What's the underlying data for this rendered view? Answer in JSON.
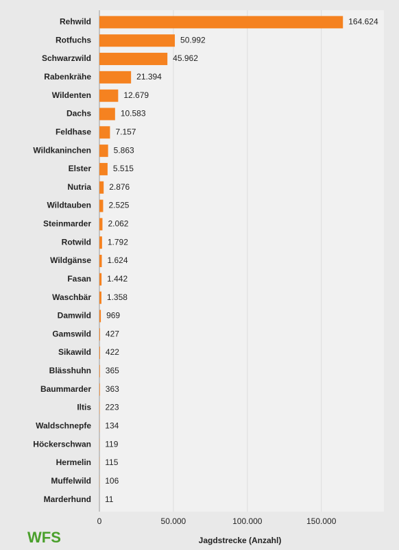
{
  "chart_data": {
    "type": "hbar",
    "categories": [
      "Rehwild",
      "Rotfuchs",
      "Schwarzwild",
      "Rabenkrähe",
      "Wildenten",
      "Dachs",
      "Feldhase",
      "Wildkaninchen",
      "Elster",
      "Nutria",
      "Wildtauben",
      "Steinmarder",
      "Rotwild",
      "Wildgänse",
      "Fasan",
      "Waschbär",
      "Damwild",
      "Gamswild",
      "Sikawild",
      "Blässhuhn",
      "Baummarder",
      "Iltis",
      "Waldschnepfe",
      "Höckerschwan",
      "Hermelin",
      "Muffelwild",
      "Marderhund"
    ],
    "values": [
      164624,
      50992,
      45962,
      21394,
      12679,
      10583,
      7157,
      5863,
      5515,
      2876,
      2525,
      2062,
      1792,
      1624,
      1442,
      1358,
      969,
      427,
      422,
      365,
      363,
      223,
      134,
      119,
      115,
      106,
      11
    ],
    "value_labels": [
      "164.624",
      "50.992",
      "45.962",
      "21.394",
      "12.679",
      "10.583",
      "7.157",
      "5.863",
      "5.515",
      "2.876",
      "2.525",
      "2.062",
      "1.792",
      "1.624",
      "1.442",
      "1.358",
      "969",
      "427",
      "422",
      "365",
      "363",
      "223",
      "134",
      "119",
      "115",
      "106",
      "11"
    ],
    "color": "#f58220",
    "xlim": [
      0,
      190000
    ],
    "xticks": [
      0,
      {
        "value": 50000,
        "label": "50.000"
      },
      {
        "value": 100000,
        "label": "100.000"
      },
      {
        "value": 150000,
        "label": "150.000"
      }
    ],
    "xlabel": "Jagdstrecke (Anzahl)",
    "grid": true,
    "logo": "WFS"
  }
}
